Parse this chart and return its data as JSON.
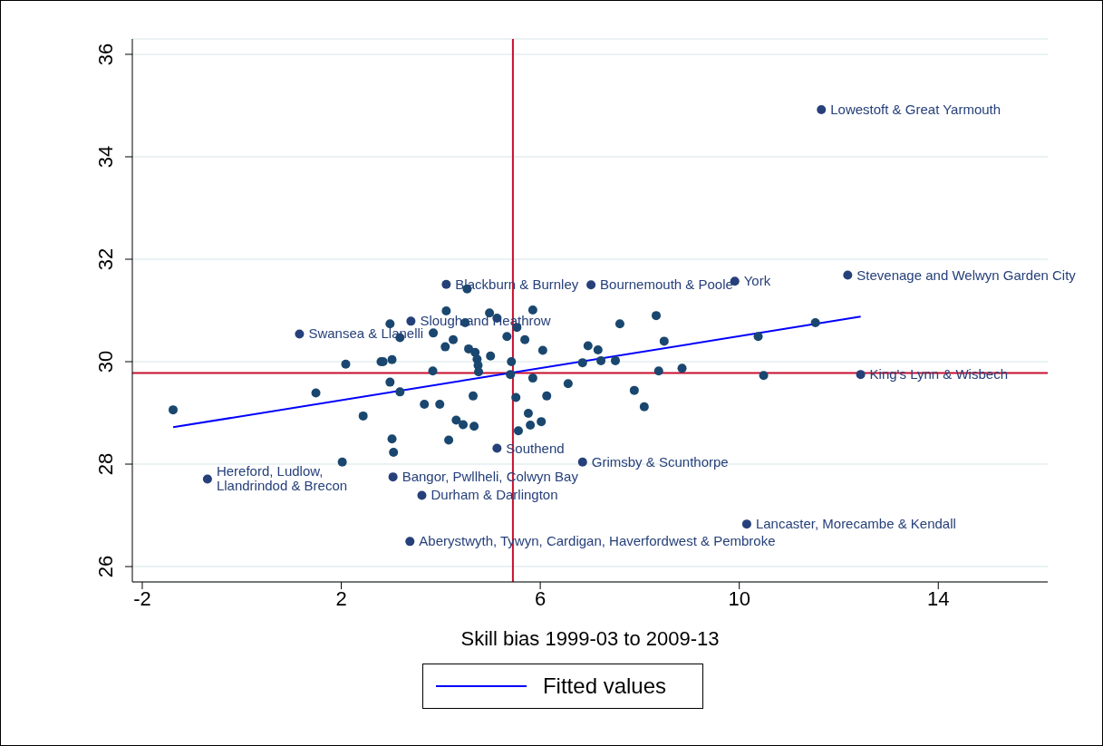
{
  "chart_data": {
    "type": "scatter",
    "xlabel": "Skill bias 1999-03 to 2009-13",
    "xlim": [
      -2.2,
      16.2
    ],
    "xticks": [
      -2,
      2,
      6,
      10,
      14
    ],
    "ylim": [
      25.7,
      36.3
    ],
    "yticks": [
      26,
      28,
      30,
      32,
      34,
      36
    ],
    "grid": "y",
    "legend": "bottom",
    "marker": "circle",
    "series": [
      {
        "color": "#1a476f",
        "x": [
          -1.38,
          1.49,
          2.09,
          2.8,
          2.44,
          2.02,
          4.53,
          2.98,
          3.18,
          3.85,
          4.11,
          4.25,
          4.09,
          4.49,
          4.98,
          5.13,
          5.33,
          2.84,
          3.02,
          2.98,
          3.18,
          3.84,
          4.56,
          4.69,
          4.73,
          4.75,
          4.76,
          5.0,
          3.67,
          3.98,
          4.65,
          4.31,
          4.45,
          4.67,
          3.02,
          3.05,
          4.16,
          5.85,
          5.53,
          5.69,
          6.05,
          5.42,
          5.4,
          5.85,
          6.56,
          5.51,
          6.13,
          5.76,
          5.8,
          6.02,
          5.56,
          6.96,
          7.16,
          7.22,
          6.85,
          7.51,
          7.6,
          7.89,
          8.09,
          8.33,
          8.49,
          8.38,
          8.85,
          10.38,
          11.53,
          10.49
        ],
        "values": [
          29.06,
          29.39,
          29.95,
          30.0,
          28.94,
          28.04,
          31.42,
          30.74,
          30.47,
          30.56,
          30.99,
          30.43,
          30.29,
          30.76,
          30.95,
          30.85,
          30.49,
          30.0,
          30.04,
          29.6,
          29.41,
          29.82,
          30.25,
          30.18,
          30.05,
          29.93,
          29.8,
          30.11,
          29.17,
          29.17,
          29.33,
          28.86,
          28.77,
          28.74,
          28.49,
          28.23,
          28.47,
          31.01,
          30.67,
          30.43,
          30.22,
          30.0,
          29.75,
          29.68,
          29.57,
          29.3,
          29.33,
          28.99,
          28.76,
          28.83,
          28.65,
          30.31,
          30.23,
          30.02,
          29.98,
          30.02,
          30.74,
          29.44,
          29.12,
          30.9,
          30.4,
          29.82,
          29.87,
          30.49,
          30.76,
          29.73
        ]
      },
      {
        "color": "#26407a",
        "x": [
          11.65,
          12.18,
          9.91,
          7.02,
          4.11,
          3.4,
          1.16,
          12.44,
          5.13,
          6.85,
          -0.69,
          3.04,
          3.62,
          10.15,
          3.38
        ],
        "values": [
          34.92,
          31.69,
          31.57,
          31.5,
          31.51,
          30.79,
          30.54,
          29.75,
          28.31,
          28.04,
          27.71,
          27.75,
          27.39,
          26.83,
          26.49
        ]
      },
      {
        "type": "line",
        "name": "Fitted values",
        "color": "#0000ff",
        "marker": "none",
        "line_style": "solid",
        "x": [
          -1.38,
          12.44
        ],
        "values": [
          28.72,
          30.88
        ]
      }
    ],
    "ref_lines": [
      {
        "axis": "x",
        "value": 5.45,
        "color": "#c8102e"
      },
      {
        "axis": "y",
        "value": 29.78,
        "color": "#c8102e"
      }
    ],
    "annotations": [
      {
        "text": "Lowestoft & Great Yarmouth",
        "x": 11.65,
        "y": 34.92
      },
      {
        "text": "Stevenage and Welwyn Garden City",
        "x": 12.18,
        "y": 31.69
      },
      {
        "text": "York",
        "x": 9.91,
        "y": 31.57
      },
      {
        "text": "Bournemouth & Poole",
        "x": 7.02,
        "y": 31.5
      },
      {
        "text": "Blackburn & Burnley",
        "x": 4.11,
        "y": 31.51
      },
      {
        "text": "Slough and Heathrow",
        "x": 3.4,
        "y": 30.79
      },
      {
        "text": "Swansea & Llanelli",
        "x": 1.16,
        "y": 30.54
      },
      {
        "text": "King's Lynn & Wisbech",
        "x": 12.44,
        "y": 29.75
      },
      {
        "text": "Southend",
        "x": 5.13,
        "y": 28.31
      },
      {
        "text": "Grimsby & Scunthorpe",
        "x": 6.85,
        "y": 28.04
      },
      {
        "text": "Hereford, Ludlow, Llandrindod & Brecon",
        "x": -0.69,
        "y": 27.71
      },
      {
        "text": "Bangor, Pwllheli, Colwyn Bay",
        "x": 3.04,
        "y": 27.75
      },
      {
        "text": "Durham & Darlington",
        "x": 3.62,
        "y": 27.39
      },
      {
        "text": "Lancaster, Morecambe & Kendall",
        "x": 10.15,
        "y": 26.83
      },
      {
        "text": "Aberystwyth, Tywyn, Cardigan, Haverfordwest & Pembroke",
        "x": 3.38,
        "y": 26.49
      }
    ]
  }
}
